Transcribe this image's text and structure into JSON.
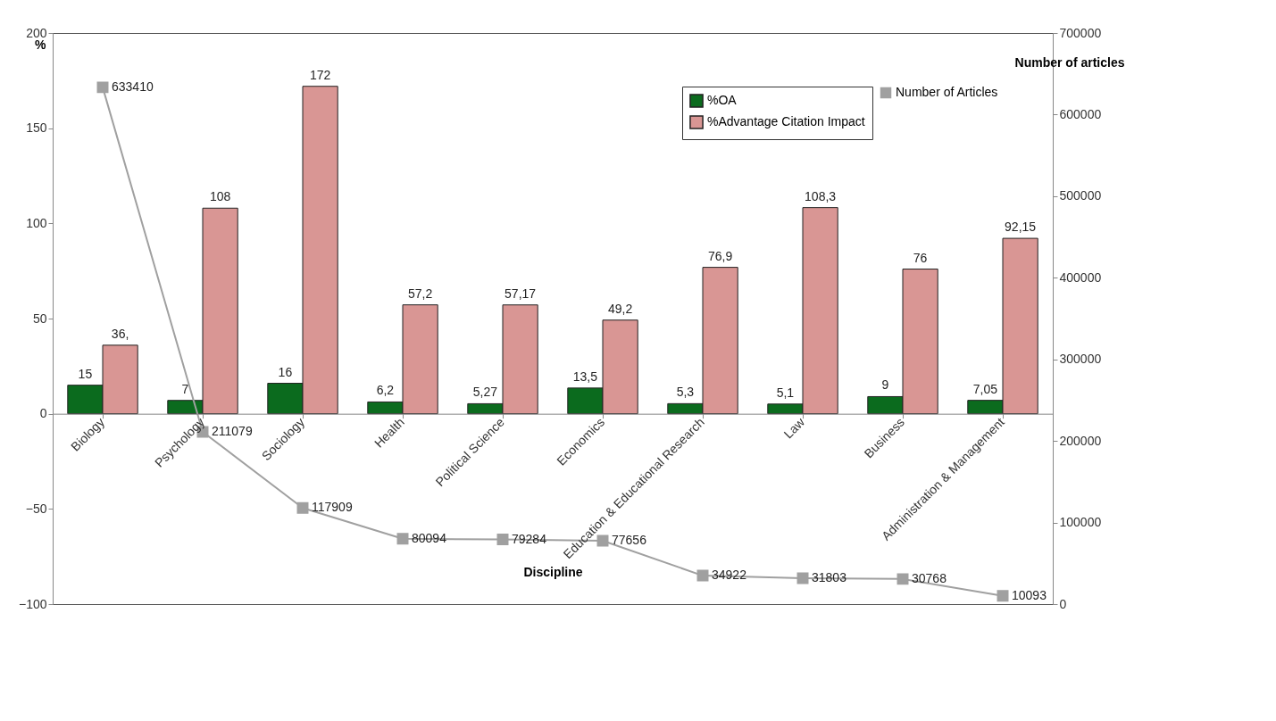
{
  "chart_data": {
    "type": "bar",
    "xlabel": "Discipline",
    "ylabel": "%",
    "y2label": "Number of articles",
    "categories": [
      "Biology",
      "Psychology",
      "Sociology",
      "Health",
      "Political Science",
      "Economics",
      "Education & Educational Research",
      "Law",
      "Business",
      "Administration & Management"
    ],
    "series": [
      {
        "name": "%OA",
        "type": "bar",
        "color": "#0b6b1e",
        "values": [
          15,
          7,
          16,
          6.2,
          5.27,
          13.5,
          5.3,
          5.1,
          9,
          7.05
        ],
        "value_labels": [
          "15",
          "7",
          "16",
          "6,2",
          "5,27",
          "13,5",
          "5,3",
          "5,1",
          "9",
          "7,05"
        ]
      },
      {
        "name": "%Advantage Citation Impact",
        "type": "bar",
        "color": "#d99694",
        "values": [
          36,
          108,
          172,
          57.2,
          57.17,
          49.2,
          76.9,
          108.3,
          76,
          92.15
        ],
        "value_labels": [
          "36,",
          "108",
          "172",
          "57,2",
          "57,17",
          "49,2",
          "76,9",
          "108,3",
          "76",
          "92,15"
        ]
      },
      {
        "name": "Number of Articles",
        "type": "line",
        "axis": "y2",
        "color": "#a0a0a0",
        "marker": "square",
        "values": [
          633410,
          211079,
          117909,
          80094,
          79284,
          77656,
          34922,
          31803,
          30768,
          10093
        ],
        "value_labels": [
          "633410",
          "211079",
          "117909",
          "80094",
          "79284",
          "77656",
          "34922",
          "31803",
          "30768",
          "10093"
        ]
      }
    ],
    "ylim": [
      -100,
      200
    ],
    "yticks": [
      -100,
      -50,
      0,
      50,
      100,
      150,
      200
    ],
    "y2lim": [
      0,
      700000
    ],
    "y2ticks": [
      0,
      100000,
      200000,
      300000,
      400000,
      500000,
      600000,
      700000
    ],
    "legend": "top right",
    "grid": false
  }
}
